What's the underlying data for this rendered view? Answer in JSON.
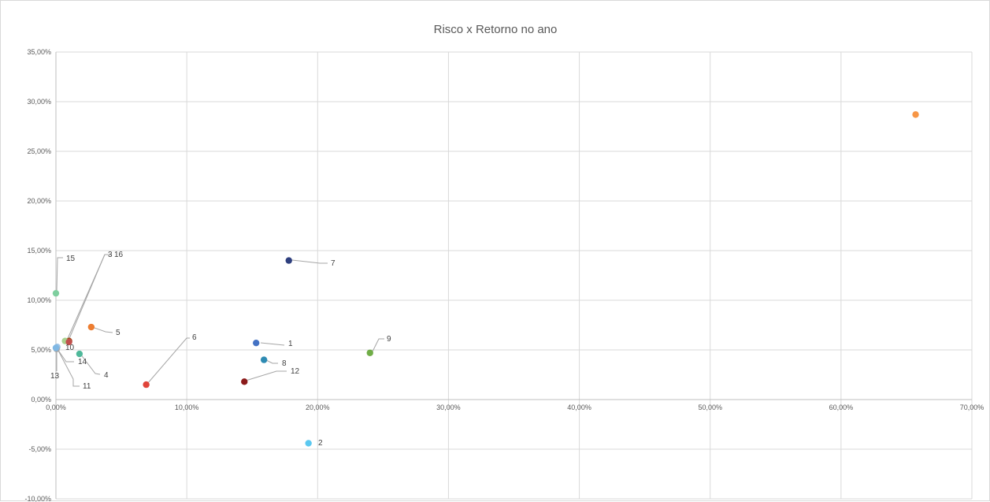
{
  "chart_data": {
    "type": "scatter",
    "title": "Risco x Retorno no ano",
    "xlabel": "",
    "ylabel": "",
    "xlim": [
      0,
      70
    ],
    "ylim": [
      -10,
      35
    ],
    "x_ticks": [
      0,
      10,
      20,
      30,
      40,
      50,
      60,
      70
    ],
    "y_ticks": [
      -10,
      -5,
      0,
      5,
      10,
      15,
      20,
      25,
      30,
      35
    ],
    "x_tick_labels": [
      "0,00%",
      "10,00%",
      "20,00%",
      "30,00%",
      "40,00%",
      "50,00%",
      "60,00%",
      "70,00%"
    ],
    "y_tick_labels": [
      "-10,00%",
      "-5,00%",
      "0,00%",
      "5,00%",
      "10,00%",
      "15,00%",
      "20,00%",
      "25,00%",
      "30,00%",
      "35,00%"
    ],
    "grid": true,
    "points": [
      {
        "label": "1",
        "x": 15.3,
        "y": 5.7,
        "color": "#4472c4"
      },
      {
        "label": "2",
        "x": 19.3,
        "y": -4.4,
        "color": "#5bc8f0"
      },
      {
        "label": "3",
        "x": 1.0,
        "y": 5.9,
        "color": "#9e480e"
      },
      {
        "label": "4",
        "x": 1.8,
        "y": 4.6,
        "color": "#4fb89a"
      },
      {
        "label": "5",
        "x": 2.7,
        "y": 7.3,
        "color": "#ed7d31"
      },
      {
        "label": "6",
        "x": 6.9,
        "y": 1.5,
        "color": "#e0443a"
      },
      {
        "label": "7",
        "x": 17.8,
        "y": 14.0,
        "color": "#2e3f7e"
      },
      {
        "label": "8",
        "x": 15.9,
        "y": 4.0,
        "color": "#2e8bb3"
      },
      {
        "label": "9",
        "x": 24.0,
        "y": 4.7,
        "color": "#70ad47"
      },
      {
        "label": "10",
        "x": 0.1,
        "y": 5.3,
        "color": "#9dc3e6"
      },
      {
        "label": "11",
        "x": 0.05,
        "y": 5.1,
        "color": "#a5a5a5"
      },
      {
        "label": "12",
        "x": 14.4,
        "y": 1.8,
        "color": "#8b1a1a"
      },
      {
        "label": "13",
        "x": 0.0,
        "y": 5.2,
        "color": "#7fb7e3"
      },
      {
        "label": "14",
        "x": 0.7,
        "y": 5.9,
        "color": "#a9d18e"
      },
      {
        "label": "15",
        "x": 0.0,
        "y": 10.7,
        "color": "#7fcf9f"
      },
      {
        "label": "16",
        "x": 1.0,
        "y": 5.8,
        "color": "#c0504d"
      },
      {
        "label": "",
        "x": 65.7,
        "y": 28.7,
        "color": "#f79646"
      }
    ]
  }
}
